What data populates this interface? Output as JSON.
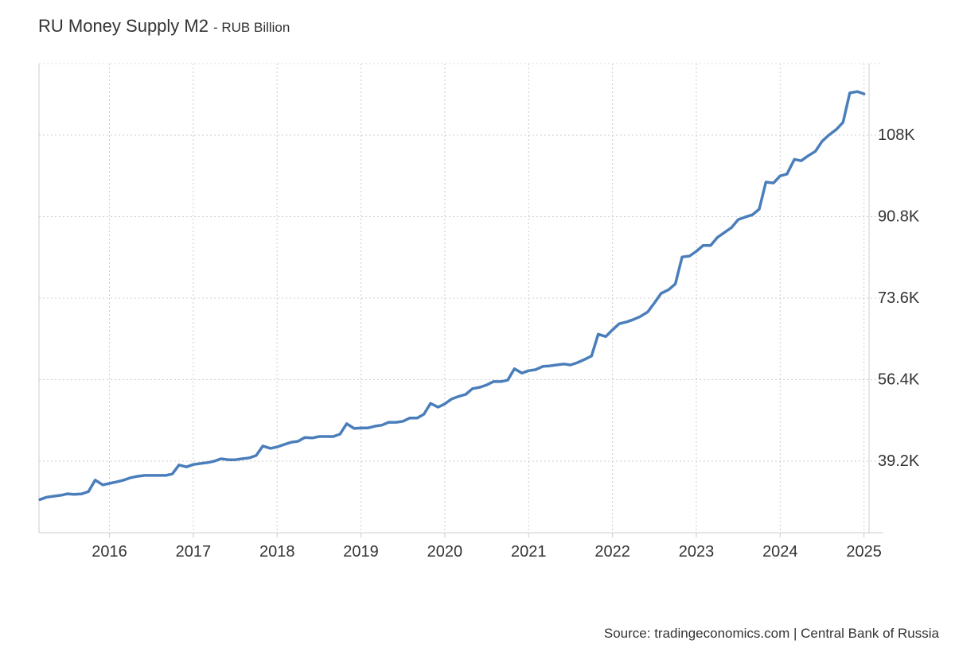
{
  "chart_data": {
    "type": "line",
    "title": "RU Money Supply M2",
    "subtitle": "- RUB Billion",
    "source": "Source: tradingeconomics.com | Central Bank of Russia",
    "x": [
      2015.17,
      2015.25,
      2015.33,
      2015.42,
      2015.5,
      2015.58,
      2015.67,
      2015.75,
      2015.83,
      2015.92,
      2016.0,
      2016.08,
      2016.17,
      2016.25,
      2016.33,
      2016.42,
      2016.5,
      2016.58,
      2016.67,
      2016.75,
      2016.83,
      2016.92,
      2017.0,
      2017.08,
      2017.17,
      2017.25,
      2017.33,
      2017.42,
      2017.5,
      2017.58,
      2017.67,
      2017.75,
      2017.83,
      2017.92,
      2018.0,
      2018.08,
      2018.17,
      2018.25,
      2018.33,
      2018.42,
      2018.5,
      2018.58,
      2018.67,
      2018.75,
      2018.83,
      2018.92,
      2019.0,
      2019.08,
      2019.17,
      2019.25,
      2019.33,
      2019.42,
      2019.5,
      2019.58,
      2019.67,
      2019.75,
      2019.83,
      2019.92,
      2020.0,
      2020.08,
      2020.17,
      2020.25,
      2020.33,
      2020.42,
      2020.5,
      2020.58,
      2020.67,
      2020.75,
      2020.83,
      2020.92,
      2021.0,
      2021.08,
      2021.17,
      2021.25,
      2021.33,
      2021.42,
      2021.5,
      2021.58,
      2021.67,
      2021.75,
      2021.83,
      2021.92,
      2022.0,
      2022.08,
      2022.17,
      2022.25,
      2022.33,
      2022.42,
      2022.5,
      2022.58,
      2022.67,
      2022.75,
      2022.83,
      2022.92,
      2023.0,
      2023.08,
      2023.17,
      2023.25,
      2023.33,
      2023.42,
      2023.5,
      2023.58,
      2023.67,
      2023.75,
      2023.83,
      2023.92,
      2024.0,
      2024.08,
      2024.17,
      2024.25,
      2024.33,
      2024.42,
      2024.5,
      2024.58,
      2024.67,
      2024.75,
      2024.83,
      2024.92,
      2025.0
    ],
    "series": [
      {
        "name": "RU Money Supply M2",
        "color": "#4a7ebb",
        "values": [
          31100,
          31600,
          31800,
          32000,
          32300,
          32200,
          32300,
          32800,
          35200,
          34200,
          34500,
          34800,
          35200,
          35700,
          36000,
          36200,
          36200,
          36200,
          36200,
          36500,
          38400,
          38000,
          38500,
          38700,
          38900,
          39200,
          39700,
          39500,
          39500,
          39700,
          39900,
          40400,
          42400,
          41900,
          42200,
          42700,
          43200,
          43400,
          44200,
          44100,
          44400,
          44400,
          44400,
          44900,
          47100,
          46100,
          46200,
          46200,
          46600,
          46800,
          47400,
          47400,
          47600,
          48300,
          48300,
          49100,
          51400,
          50600,
          51300,
          52300,
          52900,
          53300,
          54500,
          54800,
          55300,
          56000,
          56000,
          56300,
          58700,
          57800,
          58300,
          58500,
          59200,
          59300,
          59500,
          59700,
          59500,
          60000,
          60700,
          61400,
          66000,
          65500,
          66900,
          68200,
          68600,
          69100,
          69700,
          70700,
          72600,
          74600,
          75400,
          76600,
          82300,
          82500,
          83500,
          84700,
          84700,
          86400,
          87400,
          88500,
          90200,
          90700,
          91200,
          92400,
          98100,
          97900,
          99400,
          99800,
          102900,
          102600,
          103600,
          104600,
          106700,
          108000,
          109200,
          110700,
          116900,
          117200,
          116700
        ]
      }
    ],
    "xlim": [
      2015.16,
      2025.06
    ],
    "xticks": [
      2016,
      2017,
      2018,
      2019,
      2020,
      2021,
      2022,
      2023,
      2024,
      2025
    ],
    "ylim": [
      24100,
      123100
    ],
    "yticks": [
      {
        "value": 39200,
        "label": "39.2K"
      },
      {
        "value": 56400,
        "label": "56.4K"
      },
      {
        "value": 73600,
        "label": "73.6K"
      },
      {
        "value": 90800,
        "label": "90.8K"
      },
      {
        "value": 108000,
        "label": "108K"
      }
    ],
    "grid": true
  }
}
